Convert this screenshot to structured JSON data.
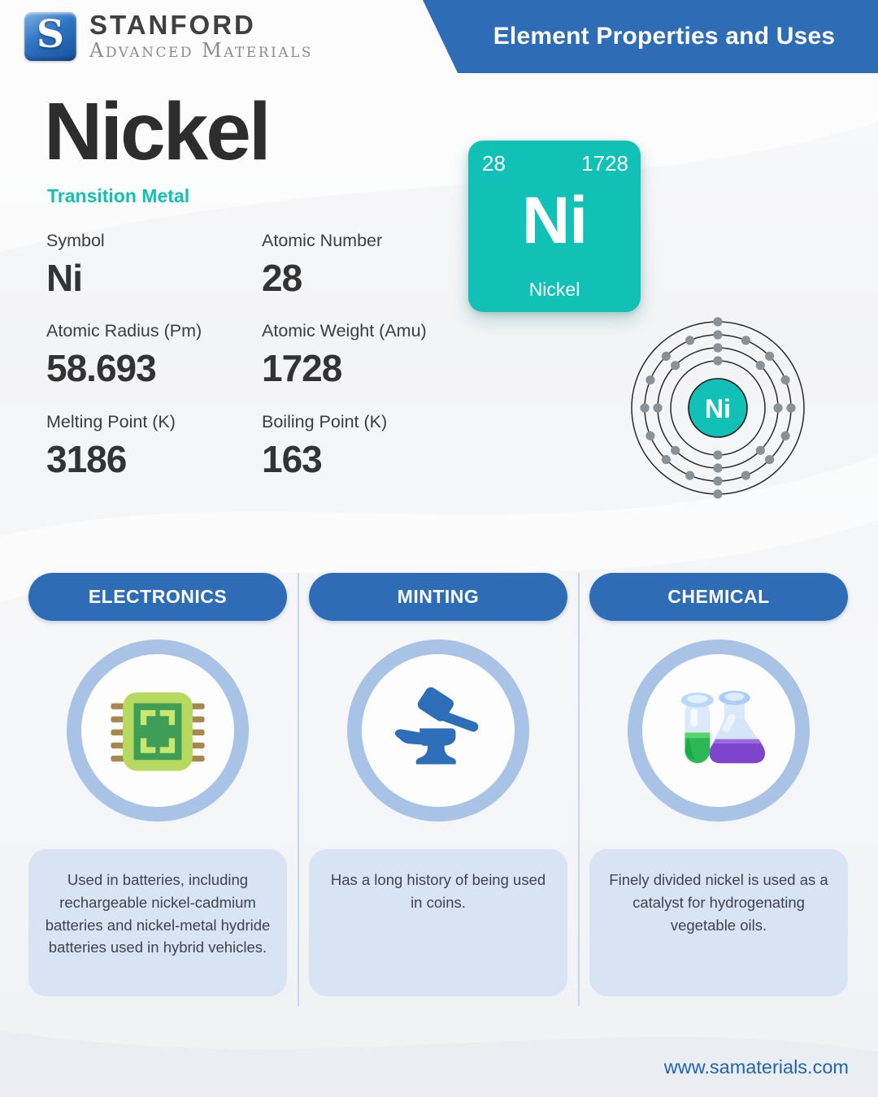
{
  "header": {
    "logo": {
      "letter": "S",
      "brand_top": "STANFORD",
      "brand_bottom": "Advanced Materials"
    },
    "banner_title": "Element Properties and Uses"
  },
  "element": {
    "name": "Nickel",
    "category": "Transition Metal",
    "tile": {
      "atomic_number": "28",
      "atomic_weight": "1728",
      "symbol": "Ni",
      "name": "Nickel"
    },
    "properties": [
      {
        "label": "Symbol",
        "value": "Ni"
      },
      {
        "label": "Atomic Number",
        "value": "28"
      },
      {
        "label": "Atomic Radius (Pm)",
        "value": "58.693"
      },
      {
        "label": "Atomic Weight (Amu)",
        "value": "1728"
      },
      {
        "label": "Melting Point (K)",
        "value": "3186"
      },
      {
        "label": "Boiling Point (K)",
        "value": "163"
      }
    ],
    "bohr_model": {
      "symbol": "Ni",
      "shells": [
        2,
        8,
        16,
        2
      ]
    }
  },
  "uses": [
    {
      "title": "ELECTRONICS",
      "icon": "chip-icon",
      "description": "Used in batteries, including rechargeable nickel-cadmium batteries and nickel-metal hydride batteries used in hybrid vehicles."
    },
    {
      "title": "MINTING",
      "icon": "anvil-hammer-icon",
      "description": "Has a long history of being used in coins."
    },
    {
      "title": "CHEMICAL",
      "icon": "flask-icon",
      "description": "Finely divided nickel is used as a catalyst for hydrogenating vegetable oils."
    }
  ],
  "footer": {
    "website": "www.samaterials.com"
  },
  "colors": {
    "teal": "#12c1b5",
    "banner_blue": "#2e6cb5",
    "ring_light_blue": "#a9c3e6",
    "desc_box_blue": "#d8e3f3",
    "footer_blue": "#2164ae",
    "text_dark": "#2d2d2d"
  }
}
